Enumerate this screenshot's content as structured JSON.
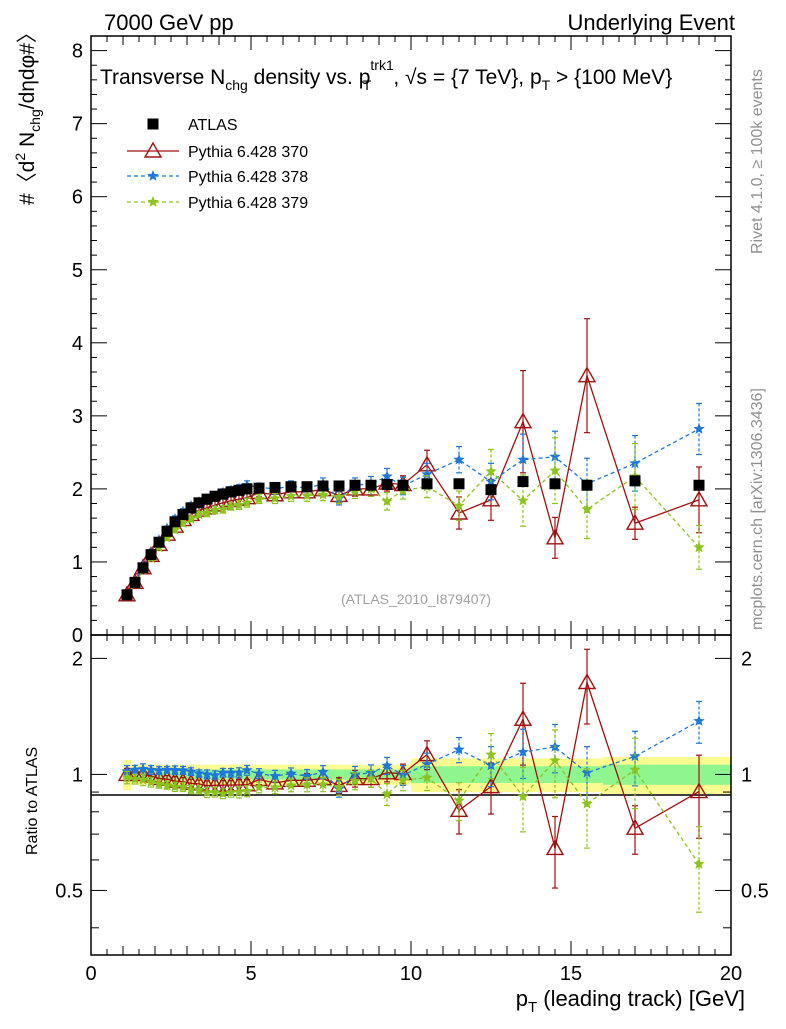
{
  "header": {
    "left": "7000 GeV pp",
    "right": "Underlying Event"
  },
  "side": {
    "rivet": "Rivet 4.1.0, ≥ 100k events",
    "mcplots": "mcplots.cern.ch [arXiv:1306.3436]"
  },
  "chart_data": {
    "type": "scatter",
    "title": {
      "a": "Transverse N",
      "a_sub": "chg",
      "b": " density vs. p",
      "b_sup": "trk1",
      "b_sub": "T",
      "c": ", √s = {7 TeV}, p",
      "c_sub": "T",
      "d": " > {100 MeV}"
    },
    "ylabel": {
      "a": "#〈d",
      "a_sup": "2",
      "b": " N",
      "b_sub": "chg",
      "c": "/dηdφ#〉"
    },
    "xlabel": {
      "a": "p",
      "a_sub": "T",
      "b": " (leading track) [GeV]"
    },
    "ratio_ylabel": "Ratio to ATLAS",
    "watermark": "(ATLAS_2010_I879407)",
    "xlim": [
      0,
      20
    ],
    "ylim": [
      0,
      8.2
    ],
    "ratio_ylim": [
      0.34,
      2.3
    ],
    "x_ticks": [
      "0",
      "5",
      "10",
      "15",
      "20"
    ],
    "y_ticks": [
      "0",
      "1",
      "2",
      "3",
      "4",
      "5",
      "6",
      "7",
      "8"
    ],
    "ratio_ticks": [
      "0.5",
      "1",
      "2"
    ],
    "x": [
      1.125,
      1.375,
      1.625,
      1.875,
      2.125,
      2.375,
      2.625,
      2.875,
      3.125,
      3.375,
      3.625,
      3.875,
      4.125,
      4.375,
      4.625,
      4.875,
      5.25,
      5.75,
      6.25,
      6.75,
      7.25,
      7.75,
      8.25,
      8.75,
      9.25,
      9.75,
      10.5,
      11.5,
      12.5,
      13.5,
      14.5,
      15.5,
      17.0,
      19.0
    ],
    "series": [
      {
        "name": "ATLAS",
        "color": "#000000",
        "marker": "square",
        "values": [
          0.55,
          0.72,
          0.92,
          1.1,
          1.27,
          1.42,
          1.55,
          1.65,
          1.74,
          1.81,
          1.86,
          1.9,
          1.93,
          1.96,
          1.98,
          2.0,
          2.01,
          2.02,
          2.03,
          2.03,
          2.04,
          2.04,
          2.05,
          2.05,
          2.06,
          2.05,
          2.07,
          2.07,
          1.99,
          2.1,
          2.07,
          2.05,
          2.11,
          2.05
        ]
      },
      {
        "name": "Pythia 6.428 370",
        "color": "#a01010",
        "marker": "triangle",
        "errors": [
          0.02,
          0.02,
          0.03,
          0.03,
          0.03,
          0.03,
          0.04,
          0.04,
          0.04,
          0.04,
          0.05,
          0.05,
          0.05,
          0.05,
          0.06,
          0.06,
          0.06,
          0.07,
          0.07,
          0.08,
          0.08,
          0.09,
          0.1,
          0.1,
          0.11,
          0.12,
          0.2,
          0.22,
          0.28,
          0.7,
          0.28,
          0.78,
          0.22,
          0.45
        ],
        "values": [
          0.55,
          0.72,
          0.92,
          1.09,
          1.24,
          1.38,
          1.49,
          1.58,
          1.65,
          1.71,
          1.74,
          1.78,
          1.81,
          1.84,
          1.86,
          1.88,
          1.95,
          1.92,
          1.96,
          1.96,
          1.99,
          1.91,
          2.0,
          2.0,
          2.08,
          2.06,
          2.33,
          1.67,
          1.85,
          2.92,
          1.33,
          3.55,
          1.53,
          1.85
        ]
      },
      {
        "name": "Pythia 6.428 378",
        "color": "#1f78d8",
        "marker": "star",
        "errors": [
          0.02,
          0.02,
          0.03,
          0.03,
          0.03,
          0.03,
          0.04,
          0.04,
          0.04,
          0.04,
          0.05,
          0.05,
          0.05,
          0.05,
          0.06,
          0.06,
          0.06,
          0.07,
          0.07,
          0.08,
          0.08,
          0.09,
          0.1,
          0.1,
          0.11,
          0.12,
          0.15,
          0.18,
          0.25,
          0.35,
          0.35,
          0.35,
          0.38,
          0.35
        ],
        "values": [
          0.56,
          0.74,
          0.95,
          1.13,
          1.3,
          1.46,
          1.59,
          1.69,
          1.77,
          1.82,
          1.86,
          1.89,
          1.95,
          1.98,
          2.0,
          2.05,
          2.02,
          2.0,
          2.04,
          2.01,
          2.07,
          1.87,
          2.05,
          2.07,
          2.17,
          2.04,
          2.2,
          2.4,
          2.1,
          2.4,
          2.44,
          2.07,
          2.35,
          2.82
        ]
      },
      {
        "name": "Pythia 6.428 379",
        "color": "#8cc31f",
        "marker": "star",
        "errors": [
          0.02,
          0.02,
          0.03,
          0.03,
          0.03,
          0.03,
          0.04,
          0.04,
          0.04,
          0.04,
          0.05,
          0.05,
          0.05,
          0.05,
          0.06,
          0.06,
          0.06,
          0.07,
          0.07,
          0.08,
          0.08,
          0.09,
          0.1,
          0.1,
          0.12,
          0.12,
          0.15,
          0.2,
          0.3,
          0.35,
          0.45,
          0.4,
          0.45,
          0.3
        ],
        "values": [
          0.54,
          0.7,
          0.89,
          1.05,
          1.2,
          1.33,
          1.44,
          1.53,
          1.59,
          1.65,
          1.67,
          1.71,
          1.72,
          1.76,
          1.78,
          1.81,
          1.86,
          1.87,
          1.9,
          1.91,
          1.92,
          1.89,
          1.97,
          2.0,
          1.83,
          1.98,
          2.03,
          1.77,
          2.24,
          1.84,
          2.25,
          1.72,
          2.17,
          1.2
        ]
      }
    ],
    "band_x": [
      1.0,
      1.25,
      1.5,
      1.75,
      2.0,
      2.25,
      2.5,
      2.75,
      3.0,
      3.25,
      3.5,
      3.75,
      4.0,
      4.25,
      4.5,
      4.75,
      5.0,
      5.5,
      6.0,
      6.5,
      7.0,
      7.5,
      8.0,
      8.5,
      9.0,
      9.5,
      10.0,
      11.0,
      12.0,
      13.0,
      14.0,
      15.0,
      16.0,
      18.0,
      20.0
    ],
    "band_inner": [
      0.03,
      0.03,
      0.03,
      0.03,
      0.03,
      0.03,
      0.03,
      0.03,
      0.03,
      0.03,
      0.03,
      0.03,
      0.03,
      0.03,
      0.03,
      0.03,
      0.03,
      0.03,
      0.03,
      0.03,
      0.03,
      0.03,
      0.03,
      0.03,
      0.03,
      0.03,
      0.05,
      0.05,
      0.05,
      0.05,
      0.05,
      0.05,
      0.06,
      0.06
    ],
    "band_outer": [
      0.09,
      0.06,
      0.06,
      0.06,
      0.06,
      0.06,
      0.06,
      0.06,
      0.06,
      0.06,
      0.06,
      0.06,
      0.06,
      0.06,
      0.06,
      0.06,
      0.06,
      0.06,
      0.06,
      0.06,
      0.06,
      0.06,
      0.06,
      0.06,
      0.06,
      0.06,
      0.1,
      0.1,
      0.1,
      0.1,
      0.1,
      0.1,
      0.11,
      0.11
    ],
    "band_colors": {
      "inner": "#8ff58f",
      "outer": "#fbfb90"
    }
  }
}
